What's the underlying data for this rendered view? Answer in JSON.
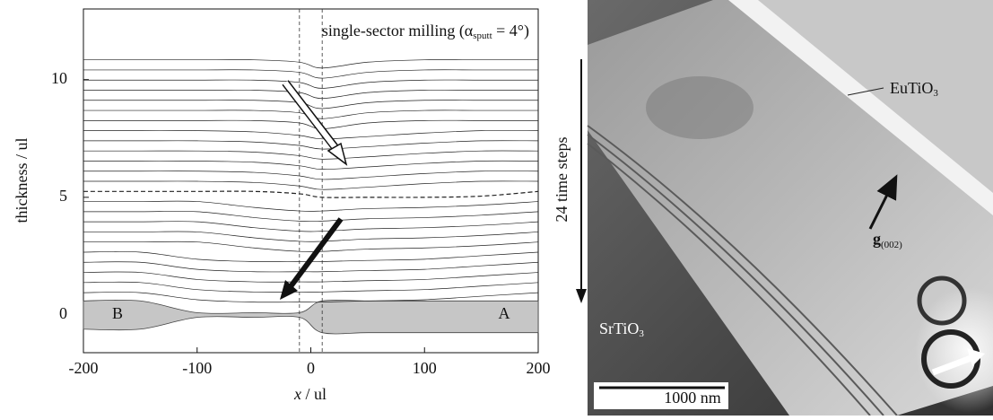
{
  "chart_data": {
    "type": "line",
    "annotation": {
      "text": "single-sector milling (α",
      "sub": "sputt",
      "end": " = 4°)"
    },
    "ylabel": "thickness / ul",
    "xlabel": {
      "var": "x",
      "unit": " / ul"
    },
    "xlim": [
      -200,
      200
    ],
    "xticks": [
      -200,
      -100,
      0,
      100,
      200
    ],
    "ylim": [
      -1.6,
      13
    ],
    "yticks": [
      0,
      5,
      10
    ],
    "vlines": [
      -10,
      10
    ],
    "region_labels": [
      {
        "text": "B",
        "x": -170,
        "y": 0
      },
      {
        "text": "A",
        "x": 170,
        "y": 0
      }
    ],
    "x": [
      -200,
      -150,
      -100,
      -50,
      -10,
      10,
      50,
      100,
      150,
      200
    ],
    "specimen": {
      "color": "#c6c6c6",
      "upper": [
        0.6,
        0.6,
        0.1,
        0.1,
        0.1,
        0.6,
        0.6,
        0.6,
        0.6,
        0.6
      ],
      "lower": [
        -0.6,
        -0.6,
        -0.1,
        -0.1,
        -0.1,
        -0.75,
        -0.75,
        -0.75,
        -0.75,
        -0.75
      ]
    },
    "series": [
      {
        "color": "#222",
        "values": [
          10.84,
          10.84,
          10.84,
          10.84,
          10.74,
          10.49,
          10.74,
          10.84,
          10.84,
          10.84
        ]
      },
      {
        "color": "#222",
        "values": [
          10.41,
          10.41,
          10.41,
          10.41,
          10.31,
          10.06,
          10.31,
          10.41,
          10.41,
          10.41
        ]
      },
      {
        "color": "#222",
        "values": [
          9.98,
          9.98,
          9.98,
          9.98,
          9.88,
          9.63,
          9.88,
          9.98,
          9.98,
          9.98
        ]
      },
      {
        "color": "#222",
        "values": [
          9.55,
          9.55,
          9.55,
          9.55,
          9.45,
          9.2,
          9.45,
          9.55,
          9.55,
          9.55
        ]
      },
      {
        "color": "#222",
        "values": [
          9.12,
          9.12,
          9.12,
          9.12,
          9.02,
          8.77,
          9.02,
          9.12,
          9.12,
          9.12
        ]
      },
      {
        "color": "#222",
        "values": [
          8.69,
          8.69,
          8.69,
          8.69,
          8.59,
          8.34,
          8.59,
          8.69,
          8.69,
          8.69
        ]
      },
      {
        "color": "#222",
        "values": [
          8.26,
          8.26,
          8.26,
          8.26,
          8.16,
          7.91,
          8.16,
          8.26,
          8.26,
          8.26
        ]
      },
      {
        "color": "#222",
        "values": [
          7.83,
          7.83,
          7.83,
          7.78,
          7.63,
          7.48,
          7.58,
          7.73,
          7.83,
          7.83
        ]
      },
      {
        "color": "#222",
        "values": [
          7.4,
          7.4,
          7.4,
          7.35,
          7.2,
          7.05,
          7.15,
          7.3,
          7.4,
          7.4
        ]
      },
      {
        "color": "#222",
        "values": [
          6.97,
          6.97,
          6.97,
          6.92,
          6.77,
          6.62,
          6.72,
          6.87,
          6.97,
          6.97
        ]
      },
      {
        "color": "#222",
        "values": [
          6.54,
          6.54,
          6.54,
          6.49,
          6.34,
          6.19,
          6.29,
          6.44,
          6.54,
          6.54
        ]
      },
      {
        "color": "#222",
        "values": [
          6.11,
          6.11,
          6.11,
          6.06,
          5.91,
          5.76,
          5.86,
          6.01,
          6.11,
          6.11
        ]
      },
      {
        "color": "#222",
        "values": [
          5.68,
          5.68,
          5.68,
          5.63,
          5.48,
          5.33,
          5.43,
          5.58,
          5.68,
          5.68
        ]
      },
      {
        "color": "#222",
        "style": "dashed",
        "values": [
          5.25,
          5.25,
          5.25,
          5.25,
          5.15,
          5,
          5,
          5,
          5.05,
          5.25
        ]
      },
      {
        "color": "#222",
        "values": [
          4.82,
          4.82,
          4.82,
          4.57,
          4.42,
          4.42,
          4.52,
          4.57,
          4.67,
          4.82
        ]
      },
      {
        "color": "#222",
        "values": [
          4.39,
          4.39,
          4.39,
          4.14,
          3.99,
          3.99,
          4.09,
          4.14,
          4.24,
          4.39
        ]
      },
      {
        "color": "#222",
        "values": [
          3.96,
          3.96,
          3.96,
          3.71,
          3.56,
          3.56,
          3.66,
          3.71,
          3.81,
          3.96
        ]
      },
      {
        "color": "#222",
        "values": [
          3.53,
          3.53,
          3.53,
          3.28,
          3.13,
          3.13,
          3.23,
          3.28,
          3.38,
          3.53
        ]
      },
      {
        "color": "#222",
        "values": [
          3.1,
          3.1,
          3.1,
          2.85,
          2.7,
          2.7,
          2.8,
          2.85,
          2.95,
          3.1
        ]
      },
      {
        "color": "#222",
        "values": [
          2.67,
          2.67,
          2.37,
          2.27,
          2.27,
          2.27,
          2.32,
          2.37,
          2.52,
          2.67
        ]
      },
      {
        "color": "#222",
        "values": [
          2.24,
          2.24,
          1.94,
          1.84,
          1.84,
          1.84,
          1.89,
          1.94,
          2.09,
          2.24
        ]
      },
      {
        "color": "#222",
        "values": [
          1.81,
          1.81,
          1.51,
          1.41,
          1.41,
          1.41,
          1.46,
          1.51,
          1.66,
          1.81
        ]
      },
      {
        "color": "#222",
        "values": [
          1.38,
          1.38,
          1.08,
          0.98,
          0.98,
          0.98,
          1.03,
          1.08,
          1.23,
          1.38
        ]
      },
      {
        "color": "#222",
        "values": [
          0.95,
          0.95,
          0.65,
          0.55,
          0.55,
          0.55,
          0.6,
          0.65,
          0.8,
          0.95
        ]
      }
    ]
  },
  "image": {
    "time_label": "24 time steps",
    "layer": {
      "text": "EuTiO",
      "sub": "3"
    },
    "vector": {
      "text": "g",
      "sub": "(002)"
    },
    "substrate": {
      "text": "SrTiO",
      "sub": "3"
    },
    "scale_bar": "1000 nm"
  }
}
